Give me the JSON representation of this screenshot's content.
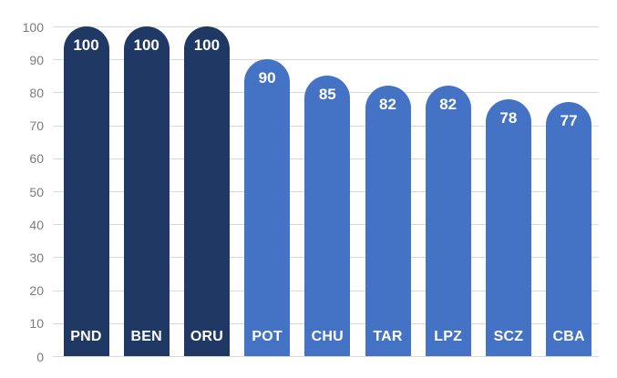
{
  "chart_data": {
    "type": "bar",
    "title": "",
    "xlabel": "",
    "ylabel": "",
    "categories": [
      "PND",
      "BEN",
      "ORU",
      "POT",
      "CHU",
      "TAR",
      "LPZ",
      "SCZ",
      "CBA"
    ],
    "values": [
      100,
      100,
      100,
      90,
      85,
      82,
      82,
      78,
      77
    ],
    "bar_colors": [
      "#1F3864",
      "#1F3864",
      "#1F3864",
      "#4472C4",
      "#4472C4",
      "#4472C4",
      "#4472C4",
      "#4472C4",
      "#4472C4"
    ],
    "highlight_color": "#1F3864",
    "default_color": "#4472C4",
    "value_labels_position": "inside-top",
    "category_labels_position": "inside-bottom",
    "value_label_color": "#FFFFFF",
    "ylim": [
      0,
      100
    ],
    "yticks": [
      0,
      10,
      20,
      30,
      40,
      50,
      60,
      70,
      80,
      90,
      100
    ],
    "grid": true,
    "gridline_color": "#D9D9D9",
    "tick_label_color": "#7B7B7B",
    "legend_position": "none",
    "background_color": "#FFFFFF"
  }
}
